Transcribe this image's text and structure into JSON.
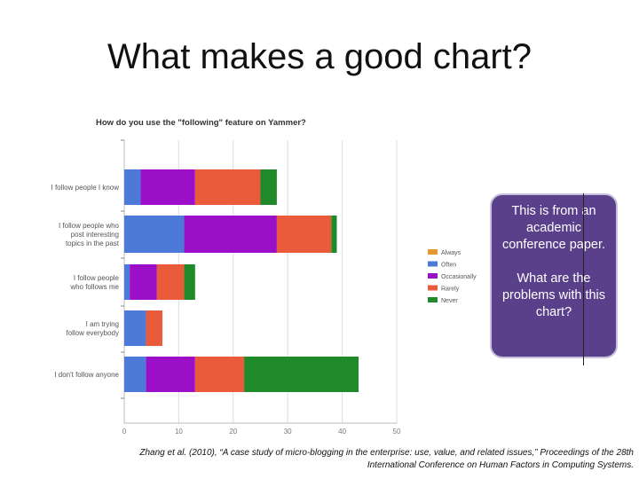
{
  "slide": {
    "title": "What makes a good chart?",
    "note_part1": "This is from an academic conference paper.",
    "note_part2": "What are the problems with this chart?",
    "citation_line1": "Zhang et al. (2010), “A case study of micro-blogging in the enterprise: use, value, and related issues,” Proceedings of the 28th",
    "citation_line2": "International Conference on Human Factors in Computing Systems."
  },
  "chart_data": {
    "type": "bar",
    "orientation": "horizontal",
    "stacked": true,
    "title": "How do you use the \"following\" feature on Yammer?",
    "xlabel": "",
    "ylabel": "",
    "xlim": [
      0,
      50
    ],
    "xticks": [
      0,
      10,
      20,
      30,
      40,
      50
    ],
    "grid": true,
    "legend_position": "right",
    "categories": [
      "I follow people I know",
      "I follow people who post interesting topics in the past",
      "I follow people who follows me",
      "I am trying follow everybody",
      "I don't follow anyone"
    ],
    "category_label_lines": [
      [
        "I follow people I know"
      ],
      [
        "I follow people who",
        "post interesting",
        "topics in the past"
      ],
      [
        "I follow people",
        "who follows me"
      ],
      [
        "I am trying",
        "follow everybody"
      ],
      [
        "I don't follow anyone"
      ]
    ],
    "series": [
      {
        "name": "Always",
        "color": "#e8962e",
        "values": [
          0,
          0,
          0,
          0,
          0
        ]
      },
      {
        "name": "Often",
        "color": "#4d79d9",
        "values": [
          3,
          11,
          1,
          4,
          4
        ]
      },
      {
        "name": "Occasionally",
        "color": "#9b0fc9",
        "values": [
          10,
          17,
          5,
          0,
          9
        ]
      },
      {
        "name": "Rarely",
        "color": "#ea5b3c",
        "values": [
          12,
          10,
          5,
          3,
          9
        ]
      },
      {
        "name": "Never",
        "color": "#1f8a2a",
        "values": [
          3,
          1,
          2,
          0,
          21
        ]
      }
    ]
  }
}
